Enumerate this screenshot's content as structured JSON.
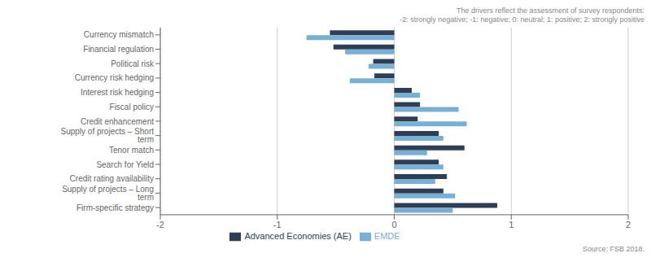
{
  "chart_data": {
    "type": "bar",
    "orientation": "horizontal",
    "categories": [
      "Currency mismatch",
      "Financial regulation",
      "Political risk",
      "Currency risk hedging",
      "Interest risk hedging",
      "Fiscal policy",
      "Credit enhancement",
      "Supply of projects – Short term",
      "Tenor match",
      "Search for Yield",
      "Credit rating availability",
      "Supply of projects – Long term",
      "Firm-specific strategy"
    ],
    "series": [
      {
        "name": "Advanced Economies (AE)",
        "color": "#2e3f55",
        "values": [
          -0.55,
          -0.52,
          -0.18,
          -0.17,
          0.15,
          0.22,
          0.2,
          0.38,
          0.6,
          0.38,
          0.45,
          0.42,
          0.88
        ]
      },
      {
        "name": "EMDE",
        "color": "#7aafd4",
        "values": [
          -0.75,
          -0.42,
          -0.22,
          -0.38,
          0.22,
          0.55,
          0.62,
          0.42,
          0.28,
          0.42,
          0.35,
          0.52,
          0.5
        ]
      }
    ],
    "xlim": [
      -2,
      2
    ],
    "xticks": [
      -2,
      -1,
      0,
      1,
      2
    ],
    "grid": true,
    "legend": "bottom",
    "annotations": [
      "The drivers reflect the assessment of survey respondents:\n-2: strongly negative; -1: negative; 0: neutral; 1: positive; 2: strongly positive",
      "Source: FSB 2018."
    ]
  }
}
